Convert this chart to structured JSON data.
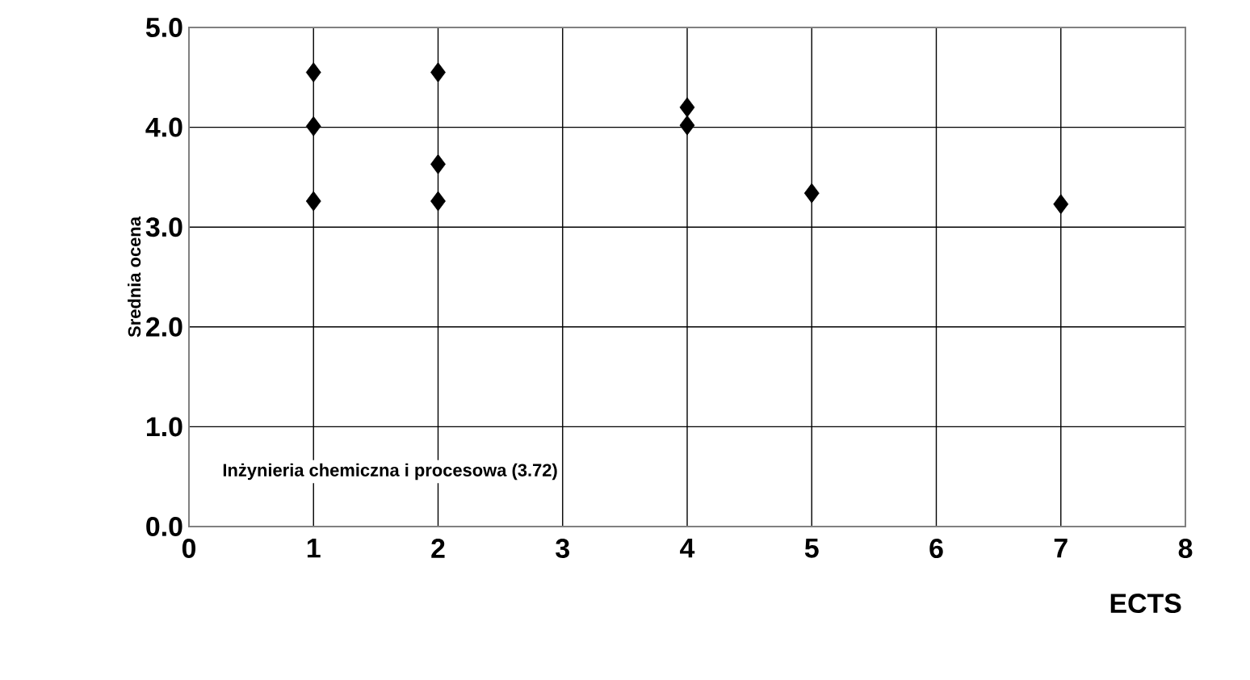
{
  "chart_data": {
    "type": "scatter",
    "xlabel": "ECTS",
    "ylabel": "Srednia ocena",
    "x": [
      1,
      1,
      1,
      2,
      2,
      2,
      4,
      4,
      5,
      7
    ],
    "values": [
      4.55,
      4.01,
      3.26,
      4.55,
      3.63,
      3.26,
      4.2,
      4.02,
      3.34,
      3.23
    ],
    "color": "#000000",
    "marker": "diamond",
    "xlim": [
      0,
      8
    ],
    "ylim": [
      0,
      5
    ],
    "xticks": [
      0,
      1,
      2,
      3,
      4,
      5,
      6,
      7,
      8
    ],
    "yticks": [
      {
        "value": 0,
        "label": "0.0"
      },
      {
        "value": 1,
        "label": "1.0"
      },
      {
        "value": 2,
        "label": "2.0"
      },
      {
        "value": 3,
        "label": "3.0"
      },
      {
        "value": 4,
        "label": "4.0"
      },
      {
        "value": 5,
        "label": "5.0"
      }
    ],
    "grid": true,
    "annotations": [
      "Inżynieria chemiczna i procesowa (3.72)"
    ]
  }
}
